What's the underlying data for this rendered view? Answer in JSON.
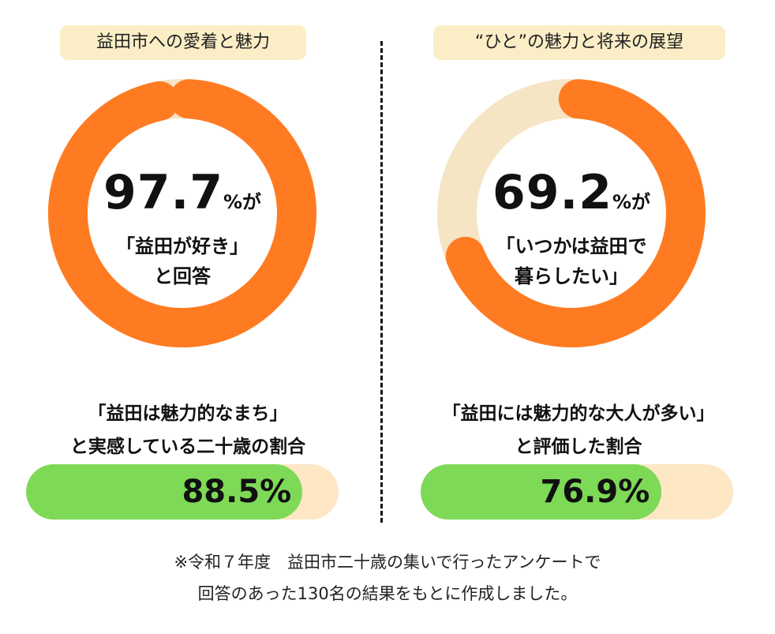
{
  "colors": {
    "accent_orange": "#ff7b22",
    "track_beige": "#f5e5c5",
    "bar_green": "#7ed957",
    "bar_track": "#fde7c5",
    "tag_bg": "#fbeec6"
  },
  "left": {
    "tag": "益田市への愛着と魅力",
    "donut": {
      "value": "97.7",
      "unit": "%が",
      "line1": "「益田が好き」",
      "line2": "と回答"
    },
    "caption": {
      "line1": "「益田は魅力的なまち」",
      "line2": "と実感している二十歳の割合"
    },
    "bar": {
      "value": 88.5,
      "label": "88.5%"
    }
  },
  "right": {
    "tag": "“ひと”の魅力と将来の展望",
    "donut": {
      "value": "69.2",
      "unit": "%が",
      "line1": "「いつかは益田で",
      "line2": "暮らしたい」"
    },
    "caption": {
      "line1": "「益田には魅力的な大人が多い」",
      "line2": "と評価した割合"
    },
    "bar": {
      "value": 76.9,
      "label": "76.9%"
    }
  },
  "footnote": {
    "line1": "※令和７年度　益田市二十歳の集いで行ったアンケートで",
    "line2": "回答のあった130名の結果をもとに作成しました。"
  },
  "chart_data": [
    {
      "type": "pie",
      "categories": [
        "益田が好き",
        ""
      ],
      "values": [
        97.7,
        2.3
      ],
      "unit": "%"
    },
    {
      "type": "pie",
      "categories": [
        "いつかは益田で暮らしたい",
        ""
      ],
      "values": [
        69.2,
        30.8
      ],
      "unit": "%"
    },
    {
      "type": "bar",
      "categories": [
        "益田は魅力的なまち"
      ],
      "values": [
        88.5
      ],
      "ylim": [
        0,
        100
      ],
      "unit": "%"
    },
    {
      "type": "bar",
      "categories": [
        "益田には魅力的な大人が多い"
      ],
      "values": [
        76.9
      ],
      "ylim": [
        0,
        100
      ],
      "unit": "%"
    }
  ]
}
